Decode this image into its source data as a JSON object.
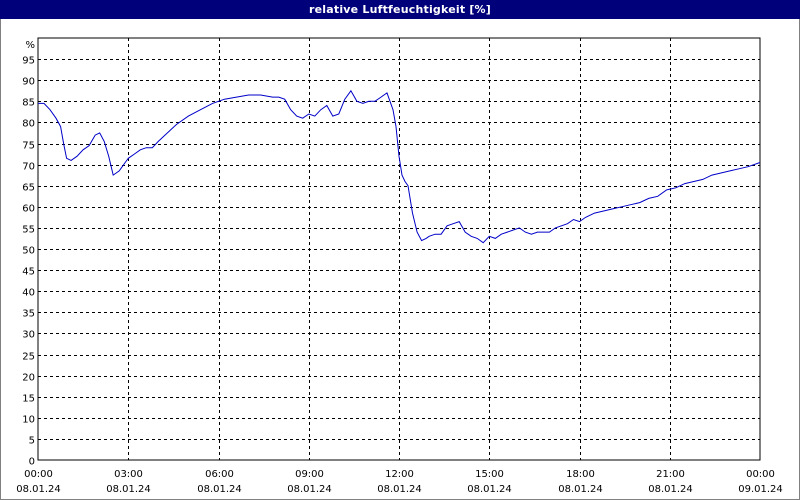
{
  "window": {
    "title": "relative Luftfeuchtigkeit [%]"
  },
  "chart_data": {
    "type": "line",
    "title": "relative Luftfeuchtigkeit [%]",
    "ylabel": "%",
    "xlabel": "",
    "ylim": [
      0,
      100
    ],
    "yticks": [
      0,
      5,
      10,
      15,
      20,
      25,
      30,
      35,
      40,
      45,
      50,
      55,
      60,
      65,
      70,
      75,
      80,
      85,
      90,
      95
    ],
    "xlim_hours": [
      0,
      24
    ],
    "xticks": [
      {
        "time": "00:00",
        "date": "08.01.24"
      },
      {
        "time": "03:00",
        "date": "08.01.24"
      },
      {
        "time": "06:00",
        "date": "08.01.24"
      },
      {
        "time": "09:00",
        "date": "08.01.24"
      },
      {
        "time": "12:00",
        "date": "08.01.24"
      },
      {
        "time": "15:00",
        "date": "08.01.24"
      },
      {
        "time": "18:00",
        "date": "08.01.24"
      },
      {
        "time": "21:00",
        "date": "08.01.24"
      },
      {
        "time": "00:00",
        "date": "09.01.24"
      }
    ],
    "grid": true,
    "line_color": "#0000c8",
    "series": [
      {
        "x": [
          0.0,
          0.2,
          0.4,
          0.6,
          0.75,
          0.85,
          0.95,
          1.1,
          1.3,
          1.5,
          1.7,
          1.9,
          2.05,
          2.2,
          2.35,
          2.5,
          2.6,
          2.7,
          2.8,
          2.9,
          3.0,
          3.2,
          3.4,
          3.6,
          3.8,
          4.0,
          4.3,
          4.6,
          5.0,
          5.4,
          5.8,
          6.2,
          6.6,
          7.0,
          7.4,
          7.8,
          8.0,
          8.2,
          8.4,
          8.6,
          8.8,
          9.0,
          9.2,
          9.4,
          9.6,
          9.8,
          10.0,
          10.2,
          10.4,
          10.6,
          10.8,
          11.0,
          11.2,
          11.4,
          11.6,
          11.8,
          11.9,
          12.0,
          12.1,
          12.2,
          12.3,
          12.45,
          12.6,
          12.75,
          12.9,
          13.0,
          13.2,
          13.4,
          13.6,
          13.8,
          14.0,
          14.2,
          14.4,
          14.6,
          14.8,
          15.0,
          15.2,
          15.4,
          15.6,
          15.8,
          16.0,
          16.2,
          16.4,
          16.6,
          16.8,
          17.0,
          17.2,
          17.4,
          17.6,
          17.8,
          18.0,
          18.2,
          18.5,
          18.8,
          19.1,
          19.4,
          19.7,
          20.0,
          20.3,
          20.6,
          20.9,
          21.2,
          21.5,
          21.8,
          22.1,
          22.4,
          22.7,
          23.0,
          23.3,
          23.6,
          24.0
        ],
        "y": [
          84.5,
          84.5,
          83,
          81,
          79,
          75,
          71.5,
          71,
          72,
          73.5,
          74.5,
          77,
          77.5,
          75.5,
          72,
          67.5,
          68,
          68.5,
          69.5,
          70.5,
          71.5,
          72.5,
          73.5,
          74,
          74,
          75.5,
          77.5,
          79.5,
          81.5,
          83,
          84.5,
          85.5,
          86,
          86.5,
          86.5,
          86,
          86,
          85.5,
          83,
          81.5,
          81,
          82,
          81.5,
          83,
          84,
          81.5,
          82,
          85.5,
          87.5,
          85,
          84.5,
          85,
          85,
          86,
          87,
          83,
          79,
          72,
          67.5,
          66,
          65,
          58.5,
          54,
          52,
          52.5,
          53,
          53.5,
          53.5,
          55.5,
          56,
          56.5,
          54,
          53,
          52.5,
          51.5,
          53,
          52.5,
          53.5,
          54,
          54.5,
          55,
          54,
          53.5,
          54,
          54,
          54,
          55,
          55.5,
          56,
          57,
          56.5,
          57.5,
          58.5,
          59,
          59.5,
          60,
          60.5,
          61,
          62,
          62.5,
          64,
          64.5,
          65.5,
          66,
          66.5,
          67.5,
          68,
          68.5,
          69,
          69.5,
          70.5
        ]
      }
    ]
  }
}
